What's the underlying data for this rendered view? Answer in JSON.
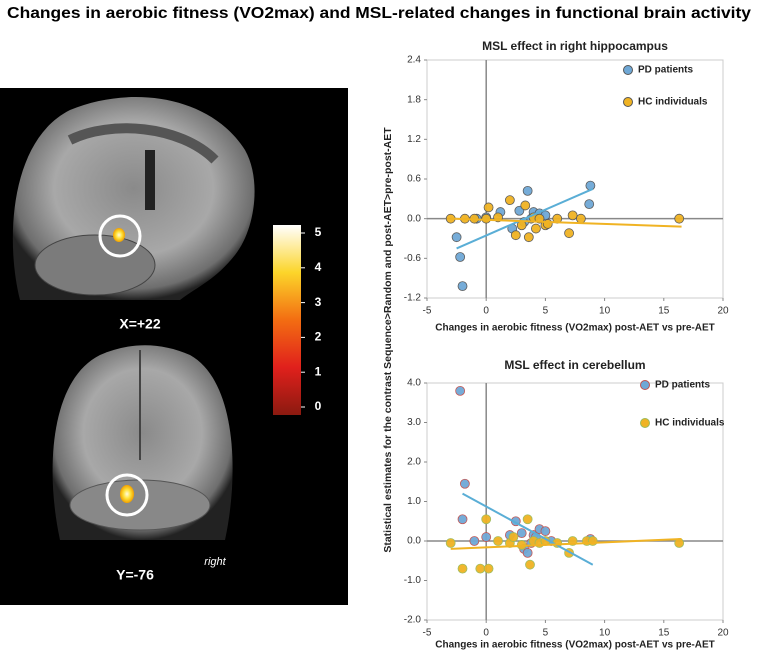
{
  "figure": {
    "title": "Changes in aerobic fitness (VO2max) and MSL-related changes in functional brain activity",
    "ylabel": "Statistical estimates for the contrast Sequence>Random and post-AET>pre-post-AET",
    "brain_labels": {
      "sagittal": "X=+22",
      "coronal": "Y=-76",
      "side": "right"
    },
    "colorbar": {
      "ticks": [
        0,
        1,
        2,
        3,
        4,
        5
      ]
    }
  },
  "chart_data": [
    {
      "type": "scatter",
      "title": "MSL effect in right hippocampus",
      "xlabel": "Changes in aerobic fitness (VO2max) post-AET vs pre-AET",
      "xlim": [
        -5,
        20
      ],
      "xticks": [
        -5,
        0,
        5,
        10,
        15,
        20
      ],
      "ylim": [
        -1.2,
        2.4
      ],
      "yticks": [
        -1.2,
        -0.6,
        {
          "value": 0,
          "label": "0.0"
        },
        0.6,
        1.2,
        1.8,
        2.4
      ],
      "legend": "upper right",
      "series": [
        {
          "name": "PD patients",
          "color": "#6fa8d6",
          "x": [
            -2.5,
            -2.2,
            -2,
            -0.8,
            0,
            1.2,
            2.2,
            2.8,
            3.2,
            3.5,
            3.8,
            4,
            4.5,
            5,
            8.8,
            8.7
          ],
          "values": [
            -0.28,
            -0.58,
            -1.02,
            0,
            0.02,
            0.1,
            -0.15,
            0.12,
            -0.05,
            0.42,
            0,
            0.1,
            0.08,
            0.05,
            0.5,
            0.22
          ]
        },
        {
          "name": "HC individuals",
          "color": "#f0b323",
          "x": [
            -3,
            -1.8,
            -1,
            0,
            0.2,
            1,
            2,
            2.5,
            3,
            3.3,
            3.6,
            4,
            4.2,
            4.5,
            5,
            5.2,
            6,
            7,
            7.3,
            8,
            16.3
          ],
          "values": [
            0,
            0,
            0,
            0,
            0.17,
            0.02,
            0.28,
            -0.25,
            -0.1,
            0.2,
            -0.28,
            0.02,
            -0.15,
            0,
            -0.1,
            -0.08,
            0,
            -0.22,
            0.05,
            0,
            0
          ]
        }
      ],
      "trendlines": [
        {
          "color": "#5aaed6",
          "x": [
            -2.5,
            9
          ],
          "y": [
            -0.45,
            0.45
          ]
        },
        {
          "color": "#f0b323",
          "x": [
            -3,
            16.5
          ],
          "y": [
            0,
            -0.12
          ]
        }
      ]
    },
    {
      "type": "scatter",
      "title": "MSL effect in cerebellum",
      "xlabel": "Changes in aerobic fitness (VO2max) post-AET vs pre-AET",
      "xlim": [
        -5,
        20
      ],
      "xticks": [
        -5,
        0,
        5,
        10,
        15,
        20
      ],
      "ylim": [
        -2,
        4
      ],
      "yticks": [
        {
          "value": -2,
          "label": "-2.0"
        },
        {
          "value": -1,
          "label": "-1.0"
        },
        {
          "value": 0,
          "label": "0.0"
        },
        {
          "value": 1,
          "label": "1.0"
        },
        {
          "value": 2,
          "label": "2.0"
        },
        {
          "value": 3,
          "label": "3.0"
        },
        {
          "value": 4,
          "label": "4.0"
        }
      ],
      "legend": "upper right",
      "series": [
        {
          "name": "PD patients",
          "color": "#6fa8d6",
          "edgecolor": "#c0504d",
          "x": [
            -2.2,
            -1.8,
            -2,
            -1,
            0,
            2,
            2.5,
            3,
            3.2,
            3.5,
            3.8,
            4,
            4.2,
            4.5,
            5,
            8.8,
            5.5
          ],
          "values": [
            3.8,
            1.45,
            0.55,
            0,
            0.1,
            0.15,
            0.5,
            0.2,
            -0.2,
            -0.3,
            -0.05,
            0.15,
            0.1,
            0.3,
            0.25,
            0.05,
            0
          ]
        },
        {
          "name": "HC individuals",
          "color": "#f0b323",
          "edgecolor": "#9bbb59",
          "x": [
            -3,
            -2,
            -0.5,
            0,
            0.2,
            1,
            2,
            2.3,
            3,
            3.5,
            3.7,
            4,
            4.5,
            5,
            6,
            7,
            7.3,
            8.5,
            9,
            16.3
          ],
          "values": [
            -0.05,
            -0.7,
            -0.7,
            0.55,
            -0.7,
            0,
            -0.05,
            0.1,
            -0.1,
            0.55,
            -0.6,
            0,
            -0.05,
            0,
            -0.05,
            -0.3,
            0,
            0,
            0,
            -0.05
          ]
        }
      ],
      "trendlines": [
        {
          "color": "#5aaed6",
          "x": [
            -2,
            9
          ],
          "y": [
            1.2,
            -0.6
          ]
        },
        {
          "color": "#f0b323",
          "x": [
            -3,
            16.5
          ],
          "y": [
            -0.2,
            0.05
          ]
        }
      ]
    }
  ]
}
